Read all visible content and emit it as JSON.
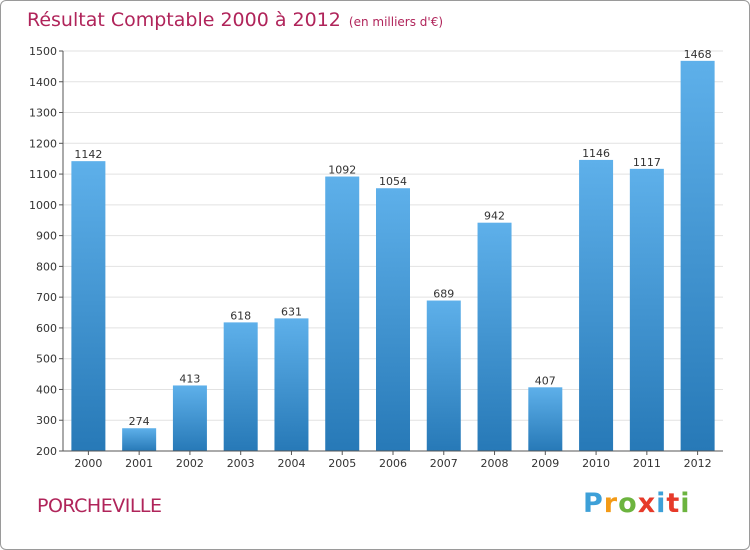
{
  "title": "Résultat Comptable 2000 à 2012",
  "unit": "(en milliers d'€)",
  "commune": "PORCHEVILLE",
  "logo": {
    "letters": [
      "P",
      "r",
      "o",
      "x",
      "i",
      "t",
      "i"
    ],
    "colors": [
      "#3da0d8",
      "#f39a16",
      "#6cb43f",
      "#e63a2a",
      "#3da0d8",
      "#e63a2a",
      "#6cb43f"
    ]
  },
  "colors": {
    "title": "#b0245a",
    "bar_light": "#5eb0ea",
    "bar_dark": "#2779b7",
    "grid": "#e2e2e2",
    "axis": "#555555"
  },
  "chart_data": {
    "type": "bar",
    "title": "Résultat Comptable 2000 à 2012",
    "subtitle": "(en milliers d'€)",
    "categories": [
      "2000",
      "2001",
      "2002",
      "2003",
      "2004",
      "2005",
      "2006",
      "2007",
      "2008",
      "2009",
      "2010",
      "2011",
      "2012"
    ],
    "values": [
      1142,
      274,
      413,
      618,
      631,
      1092,
      1054,
      689,
      942,
      407,
      1146,
      1117,
      1468
    ],
    "ylim": [
      200,
      1500
    ],
    "yticks": [
      200,
      300,
      400,
      500,
      600,
      700,
      800,
      900,
      1000,
      1100,
      1200,
      1300,
      1400,
      1500
    ],
    "xlabel": "",
    "ylabel": "",
    "grid": true
  }
}
